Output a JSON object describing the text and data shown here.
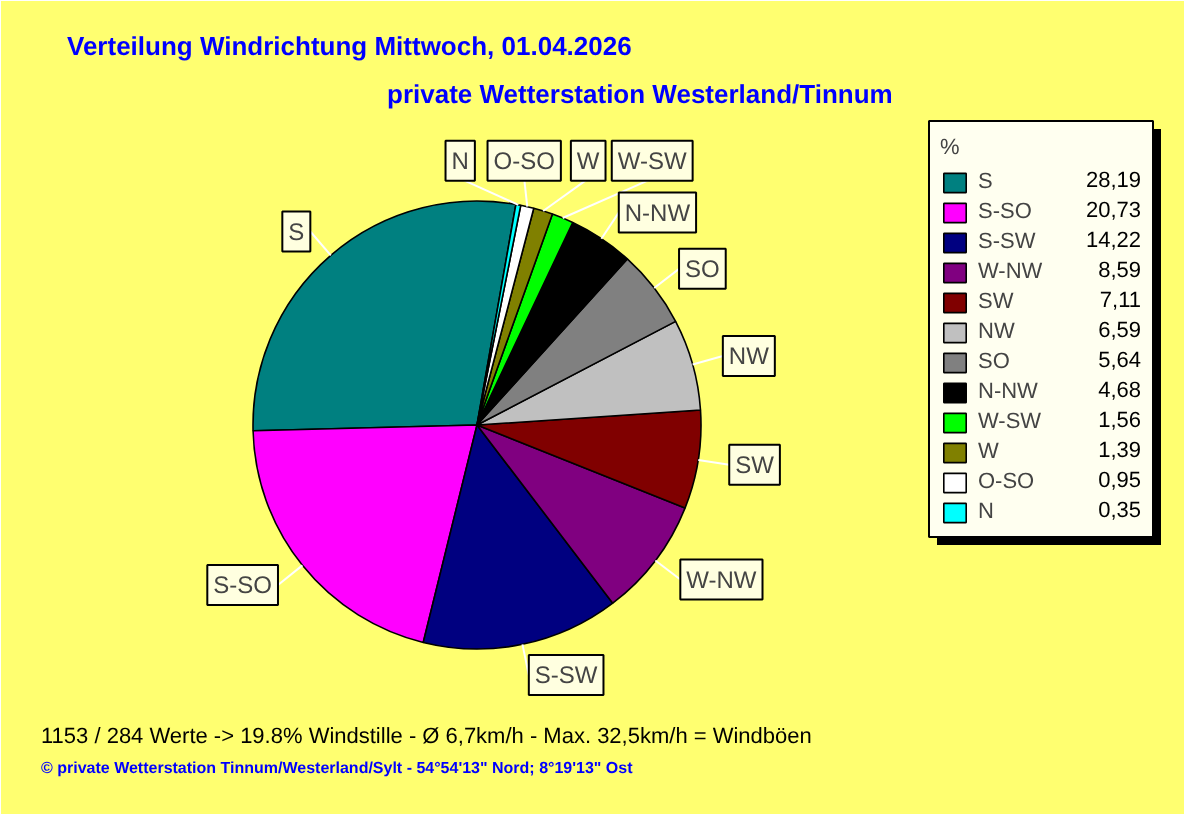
{
  "chart_data": {
    "type": "pie",
    "title": "Verteilung Windrichtung   Mittwoch, 01.04.2026",
    "subtitle": "private Wetterstation Westerland/Tinnum",
    "categories": [
      "S",
      "S-SO",
      "S-SW",
      "W-NW",
      "SW",
      "NW",
      "SO",
      "N-NW",
      "W-SW",
      "W",
      "O-SO",
      "N"
    ],
    "values": [
      28.19,
      20.73,
      14.22,
      8.59,
      7.11,
      6.59,
      5.64,
      4.68,
      1.56,
      1.39,
      0.95,
      0.35
    ],
    "value_labels": [
      "28,19",
      "20,73",
      "14,22",
      "8,59",
      "7,11",
      "6,59",
      "5,64",
      "4,68",
      "1,56",
      "1,39",
      "0,95",
      "0,35"
    ],
    "colors": [
      "#008080",
      "#ff00ff",
      "#000080",
      "#800080",
      "#800000",
      "#c0c0c0",
      "#808080",
      "#000000",
      "#00ff00",
      "#808000",
      "#ffffff",
      "#00ffff"
    ],
    "legend": "right",
    "legend_title": "%",
    "annotations": [
      "1153 / 284 Werte  -> 19.8% Windstille   -   Ø 6,7km/h  -  Max. 32,5km/h = Windböen",
      "© private Wetterstation Tinnum/Westerland/Sylt   -   54°54'13\" Nord; 8°19'13\" Ost"
    ]
  }
}
